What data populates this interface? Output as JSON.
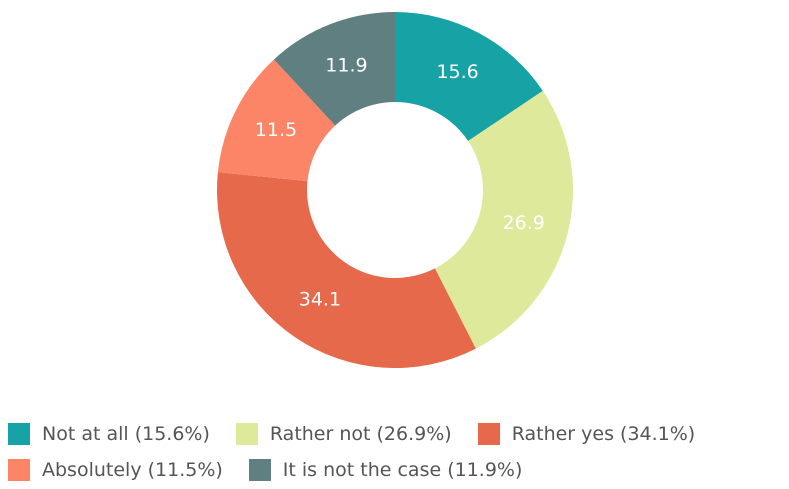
{
  "chart_data": {
    "type": "donut",
    "categories": [
      "Not at all (15.6%)",
      "Rather not (26.9%)",
      "Rather yes (34.1%)",
      "Absolutely (11.5%)",
      "It is not the case (11.9%)"
    ],
    "values": [
      15.6,
      26.9,
      34.1,
      11.5,
      11.9
    ],
    "colors": [
      "#17a2a6",
      "#dfe99b",
      "#e5694a",
      "#fb8566",
      "#607f80"
    ]
  }
}
